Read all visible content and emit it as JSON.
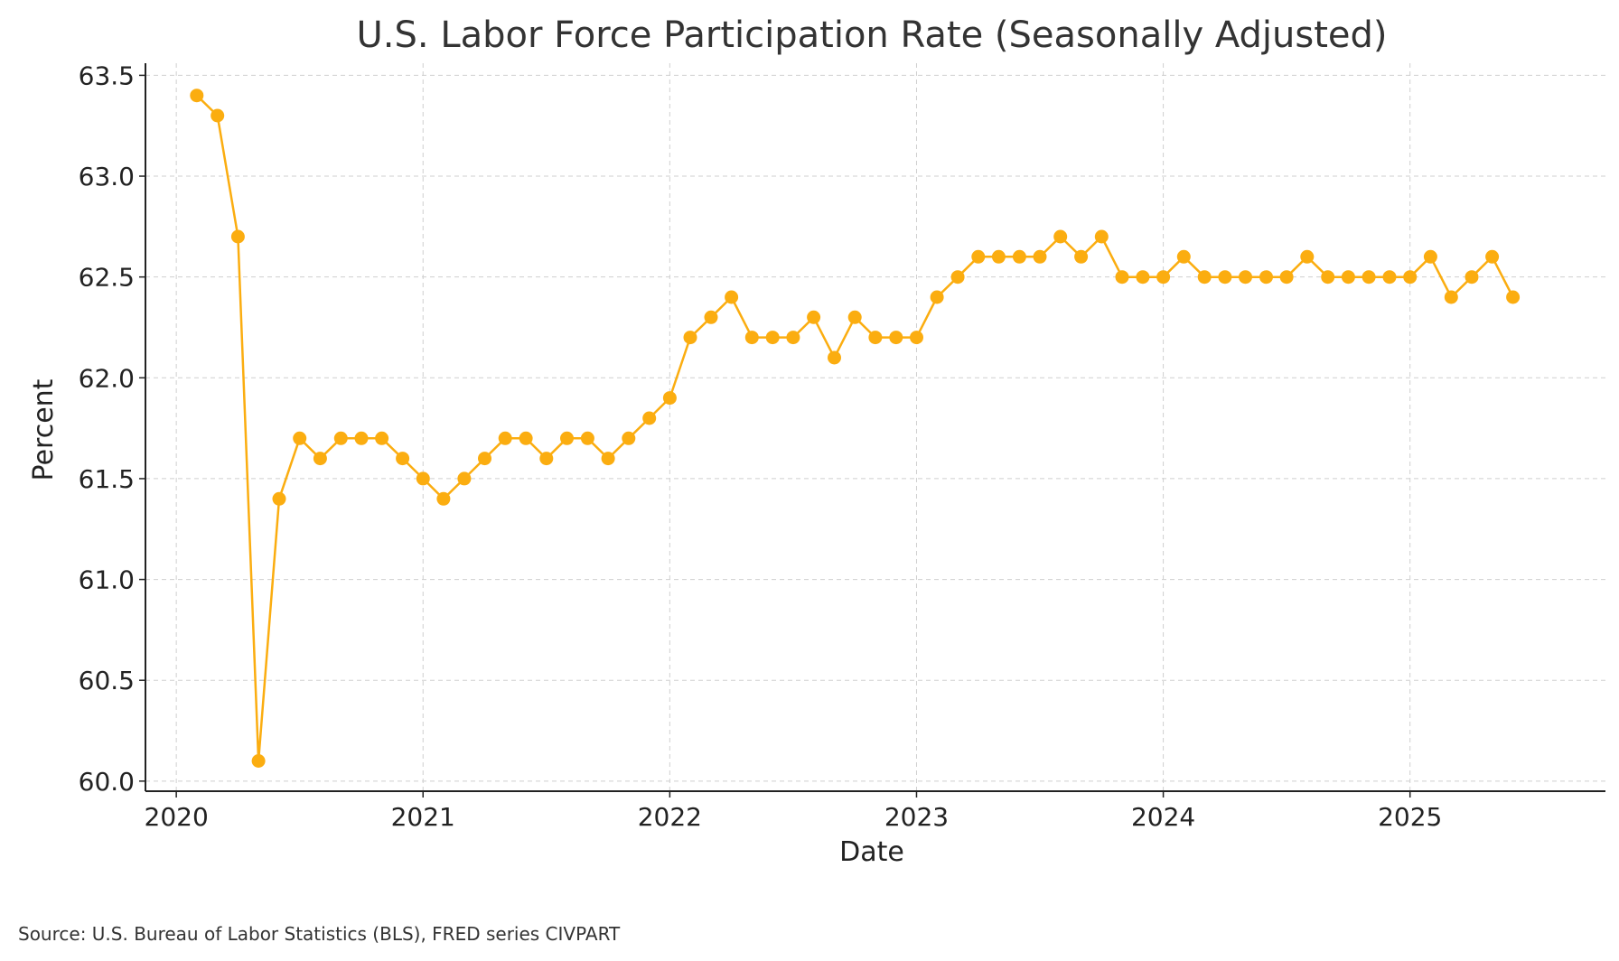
{
  "source_note": "Source: U.S. Bureau of Labor Statistics (BLS), FRED series CIVPART",
  "colors": {
    "series": "#fbad10",
    "grid": "#cfcfcf",
    "axis": "#222222"
  },
  "chart_data": {
    "type": "line",
    "title": "U.S. Labor Force Participation Rate (Seasonally Adjusted)",
    "xlabel": "Date",
    "ylabel": "Percent",
    "grid": true,
    "xlim": [
      2019.875,
      2025.792
    ],
    "ylim": [
      59.95,
      63.56
    ],
    "x_ticks": [
      {
        "value": 2020,
        "label": "2020"
      },
      {
        "value": 2021,
        "label": "2021"
      },
      {
        "value": 2022,
        "label": "2022"
      },
      {
        "value": 2023,
        "label": "2023"
      },
      {
        "value": 2024,
        "label": "2024"
      },
      {
        "value": 2025,
        "label": "2025"
      }
    ],
    "y_ticks": [
      {
        "value": 60.0,
        "label": "60.0"
      },
      {
        "value": 60.5,
        "label": "60.5"
      },
      {
        "value": 61.0,
        "label": "61.0"
      },
      {
        "value": 61.5,
        "label": "61.5"
      },
      {
        "value": 62.0,
        "label": "62.0"
      },
      {
        "value": 62.5,
        "label": "62.5"
      },
      {
        "value": 63.0,
        "label": "63.0"
      },
      {
        "value": 63.5,
        "label": "63.5"
      }
    ],
    "series": [
      {
        "name": "CIVPART",
        "start": "2020-02",
        "x": [
          2020.083,
          2020.167,
          2020.25,
          2020.333,
          2020.417,
          2020.5,
          2020.583,
          2020.667,
          2020.75,
          2020.833,
          2020.917,
          2021.0,
          2021.083,
          2021.167,
          2021.25,
          2021.333,
          2021.417,
          2021.5,
          2021.583,
          2021.667,
          2021.75,
          2021.833,
          2021.917,
          2022.0,
          2022.083,
          2022.167,
          2022.25,
          2022.333,
          2022.417,
          2022.5,
          2022.583,
          2022.667,
          2022.75,
          2022.833,
          2022.917,
          2023.0,
          2023.083,
          2023.167,
          2023.25,
          2023.333,
          2023.417,
          2023.5,
          2023.583,
          2023.667,
          2023.75,
          2023.833,
          2023.917,
          2024.0,
          2024.083,
          2024.167,
          2024.25,
          2024.333,
          2024.417,
          2024.5,
          2024.583,
          2024.667,
          2024.75,
          2024.833,
          2024.917,
          2025.0,
          2025.083,
          2025.167,
          2025.25,
          2025.333,
          2025.417
        ],
        "values": [
          63.4,
          63.3,
          62.7,
          60.1,
          61.4,
          61.7,
          61.6,
          61.7,
          61.7,
          61.7,
          61.6,
          61.5,
          61.4,
          61.5,
          61.6,
          61.7,
          61.7,
          61.6,
          61.7,
          61.7,
          61.6,
          61.7,
          61.8,
          61.9,
          62.2,
          62.3,
          62.4,
          62.2,
          62.2,
          62.2,
          62.3,
          62.1,
          62.3,
          62.2,
          62.2,
          62.2,
          62.4,
          62.5,
          62.6,
          62.6,
          62.6,
          62.6,
          62.7,
          62.6,
          62.7,
          62.5,
          62.5,
          62.5,
          62.6,
          62.5,
          62.5,
          62.5,
          62.5,
          62.5,
          62.6,
          62.5,
          62.5,
          62.5,
          62.5,
          62.5,
          62.6,
          62.4,
          62.5,
          62.6,
          62.4
        ]
      }
    ]
  }
}
